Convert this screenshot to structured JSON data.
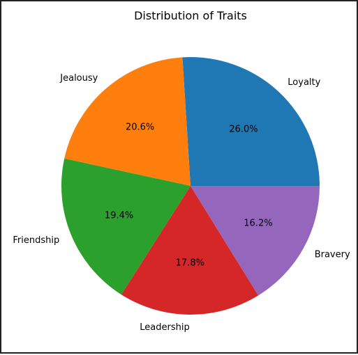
{
  "chart_data": {
    "type": "pie",
    "title": "Distribution of Traits",
    "categories": [
      "Loyalty",
      "Jealousy",
      "Friendship",
      "Leadership",
      "Bravery"
    ],
    "values": [
      26.0,
      20.6,
      19.4,
      17.8,
      16.2
    ],
    "value_labels": [
      "26.0%",
      "20.6%",
      "19.4%",
      "17.8%",
      "16.2%"
    ],
    "colors": [
      "#1f77b4",
      "#ff7f0e",
      "#2ca02c",
      "#d62728",
      "#9467bd"
    ],
    "start_angle_deg": 0,
    "direction": "counterclockwise",
    "legend": "none"
  }
}
